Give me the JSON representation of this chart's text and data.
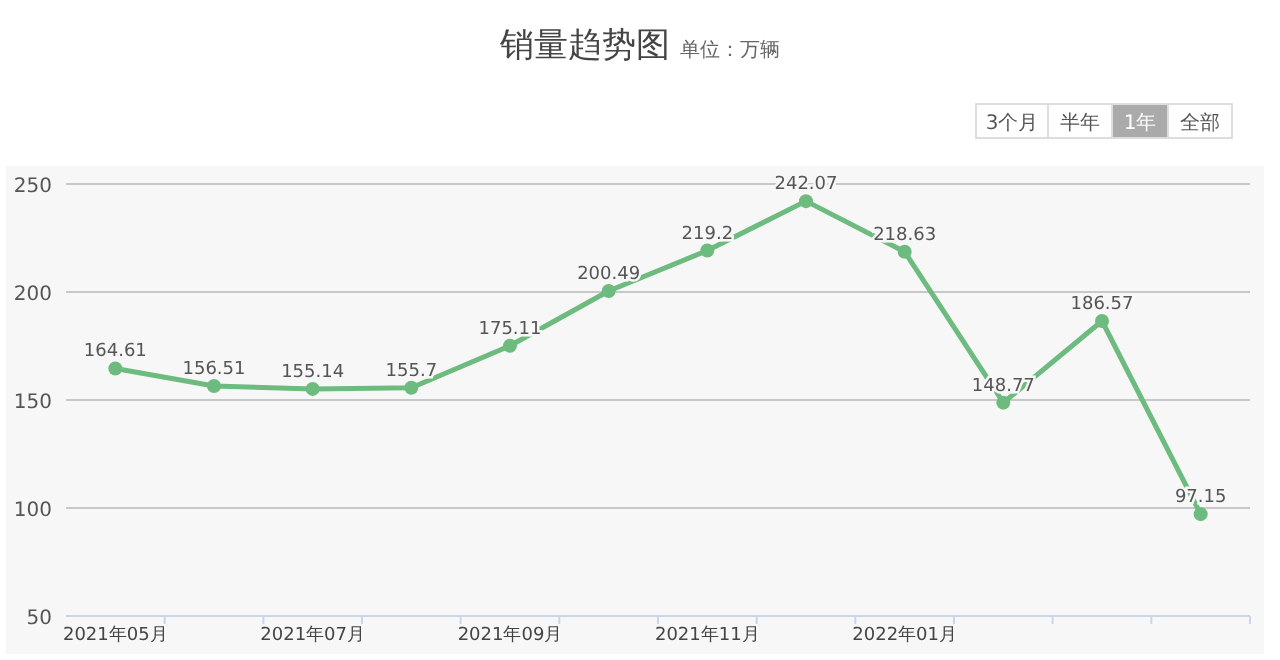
{
  "chart_data": {
    "type": "line",
    "title": "销量趋势图",
    "subtitle": "单位：万辆",
    "annotations": [
      "3个月",
      "半年",
      "1年",
      "全部"
    ],
    "categories": [
      "2021年05月",
      null,
      "2021年07月",
      null,
      "2021年09月",
      null,
      "2021年11月",
      null,
      "2022年01月",
      null,
      null,
      null
    ],
    "series": [
      {
        "color": "#6dbb7f",
        "values": [
          164.61,
          156.51,
          155.14,
          155.7,
          175.11,
          200.49,
          219.2,
          242.07,
          218.63,
          148.77,
          186.57,
          97.15
        ]
      }
    ],
    "ylim": [
      50,
      250
    ],
    "yticks": [
      50,
      100,
      150,
      200,
      250
    ],
    "grid": "y",
    "marker": "circle",
    "data_labels": true
  }
}
